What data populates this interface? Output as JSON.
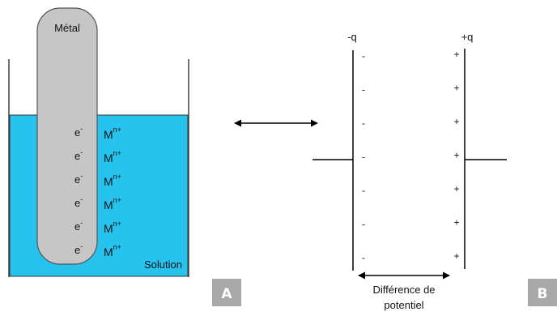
{
  "panel_a": {
    "metal_label": "Métal",
    "solution_label": "Solution",
    "electron": {
      "base": "e",
      "sup": "-"
    },
    "ion": {
      "base": "M",
      "sup": "n+"
    },
    "pair_count": 6,
    "badge": "A",
    "colors": {
      "solution": "#25c3ee",
      "electrode": "#c6c6c6",
      "outline": "#555555"
    }
  },
  "panel_b": {
    "left_plate_label": "-q",
    "right_plate_label": "+q",
    "left_signs": [
      "-",
      "-",
      "-",
      "-",
      "-",
      "-",
      "-"
    ],
    "right_signs": [
      "+",
      "+",
      "+",
      "+",
      "+",
      "+",
      "+"
    ],
    "potential_label_line1": "Différence de",
    "potential_label_line2": "potentiel",
    "badge": "B",
    "colors": {
      "badge": "#a8a8a8"
    }
  },
  "connector": {
    "icon": "double-arrow-icon"
  }
}
